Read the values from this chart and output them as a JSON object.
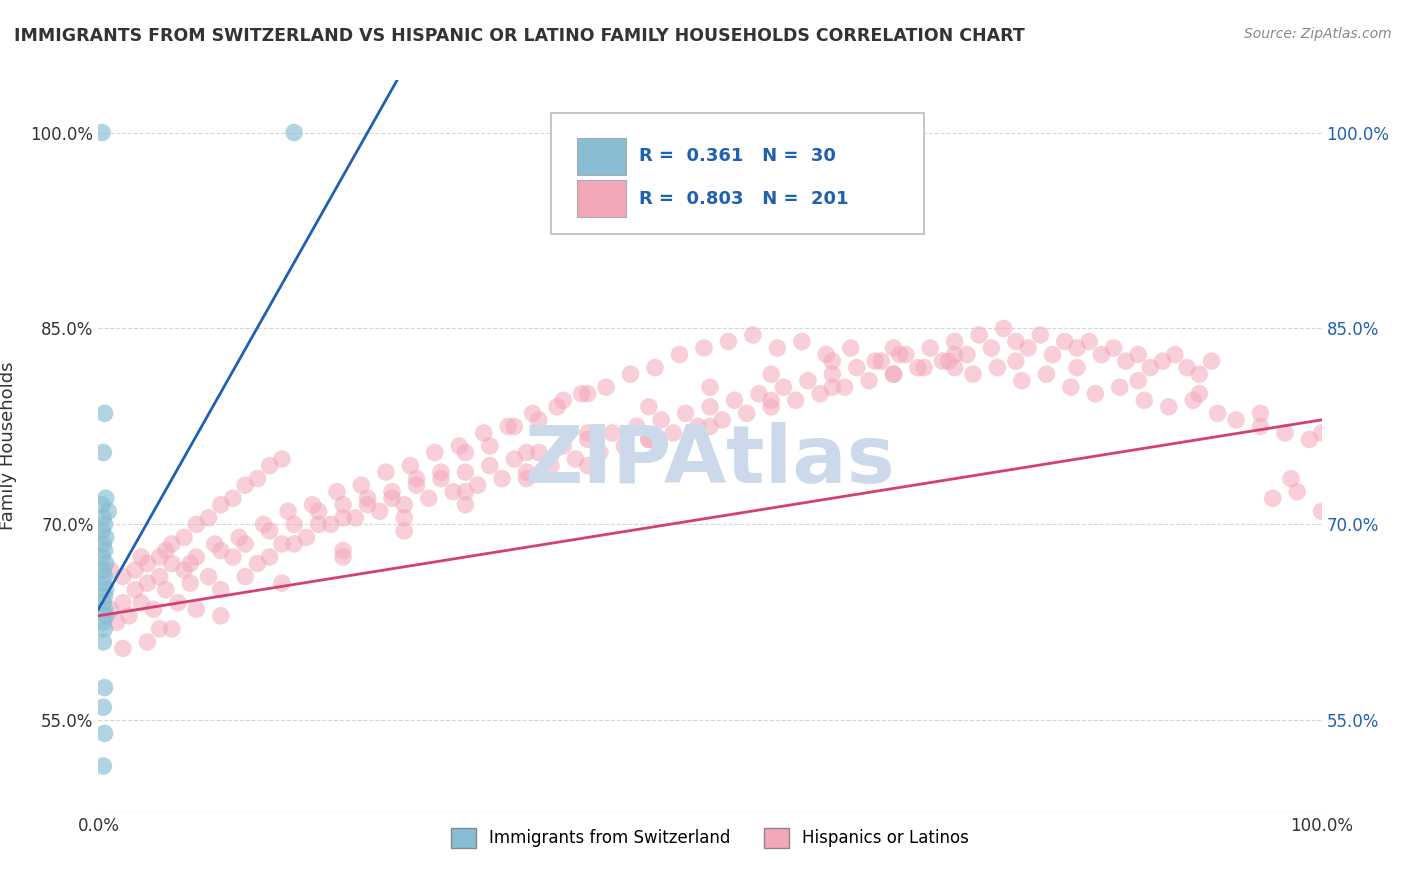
{
  "title": "IMMIGRANTS FROM SWITZERLAND VS HISPANIC OR LATINO FAMILY HOUSEHOLDS CORRELATION CHART",
  "source": "Source: ZipAtlas.com",
  "ylabel": "Family Households",
  "xlim": [
    0,
    100
  ],
  "ylim": [
    48,
    104
  ],
  "yticks": [
    55.0,
    70.0,
    85.0,
    100.0
  ],
  "ytick_labels": [
    "55.0%",
    "70.0%",
    "85.0%",
    "100.0%"
  ],
  "xticks": [
    0,
    100
  ],
  "xtick_labels": [
    "0.0%",
    "100.0%"
  ],
  "label1": "Immigrants from Switzerland",
  "label2": "Hispanics or Latinos",
  "blue_color": "#89bdd3",
  "pink_color": "#f4a7b9",
  "blue_line_color": "#2060b0",
  "pink_line_color": "#d44070",
  "blue_scatter": [
    [
      0.3,
      100.0
    ],
    [
      16.0,
      100.0
    ],
    [
      0.5,
      78.5
    ],
    [
      0.4,
      75.5
    ],
    [
      0.6,
      72.0
    ],
    [
      0.3,
      71.5
    ],
    [
      0.8,
      71.0
    ],
    [
      0.4,
      70.5
    ],
    [
      0.5,
      70.0
    ],
    [
      0.3,
      69.5
    ],
    [
      0.6,
      69.0
    ],
    [
      0.4,
      68.5
    ],
    [
      0.5,
      68.0
    ],
    [
      0.3,
      67.5
    ],
    [
      0.6,
      67.0
    ],
    [
      0.4,
      66.5
    ],
    [
      0.5,
      66.0
    ],
    [
      0.4,
      65.5
    ],
    [
      0.6,
      65.0
    ],
    [
      0.5,
      64.5
    ],
    [
      0.4,
      64.0
    ],
    [
      0.5,
      63.5
    ],
    [
      0.6,
      63.0
    ],
    [
      0.4,
      62.5
    ],
    [
      0.5,
      62.0
    ],
    [
      0.4,
      61.0
    ],
    [
      0.5,
      57.5
    ],
    [
      0.4,
      56.0
    ],
    [
      0.5,
      54.0
    ],
    [
      0.4,
      51.5
    ]
  ],
  "pink_scatter": [
    [
      1.0,
      63.5
    ],
    [
      1.5,
      62.5
    ],
    [
      2.0,
      64.0
    ],
    [
      2.5,
      63.0
    ],
    [
      3.0,
      65.0
    ],
    [
      3.5,
      64.0
    ],
    [
      4.0,
      65.5
    ],
    [
      4.5,
      63.5
    ],
    [
      5.0,
      66.0
    ],
    [
      5.5,
      65.0
    ],
    [
      6.0,
      67.0
    ],
    [
      6.5,
      64.0
    ],
    [
      7.0,
      66.5
    ],
    [
      7.5,
      65.5
    ],
    [
      8.0,
      67.5
    ],
    [
      9.0,
      66.0
    ],
    [
      10.0,
      68.0
    ],
    [
      11.0,
      67.5
    ],
    [
      12.0,
      68.5
    ],
    [
      13.0,
      67.0
    ],
    [
      14.0,
      69.5
    ],
    [
      15.0,
      68.5
    ],
    [
      16.0,
      70.0
    ],
    [
      17.0,
      69.0
    ],
    [
      18.0,
      71.0
    ],
    [
      19.0,
      70.0
    ],
    [
      20.0,
      71.5
    ],
    [
      21.0,
      70.5
    ],
    [
      22.0,
      72.0
    ],
    [
      23.0,
      71.0
    ],
    [
      24.0,
      72.5
    ],
    [
      25.0,
      71.5
    ],
    [
      26.0,
      73.0
    ],
    [
      27.0,
      72.0
    ],
    [
      28.0,
      73.5
    ],
    [
      29.0,
      72.5
    ],
    [
      30.0,
      74.0
    ],
    [
      31.0,
      73.0
    ],
    [
      32.0,
      74.5
    ],
    [
      33.0,
      73.5
    ],
    [
      34.0,
      75.0
    ],
    [
      35.0,
      74.0
    ],
    [
      36.0,
      75.5
    ],
    [
      37.0,
      74.5
    ],
    [
      38.0,
      76.0
    ],
    [
      39.0,
      75.0
    ],
    [
      40.0,
      76.5
    ],
    [
      41.0,
      75.5
    ],
    [
      42.0,
      77.0
    ],
    [
      43.0,
      76.0
    ],
    [
      44.0,
      77.5
    ],
    [
      45.0,
      76.5
    ],
    [
      46.0,
      78.0
    ],
    [
      47.0,
      77.0
    ],
    [
      48.0,
      78.5
    ],
    [
      49.0,
      77.5
    ],
    [
      50.0,
      79.0
    ],
    [
      51.0,
      78.0
    ],
    [
      52.0,
      79.5
    ],
    [
      53.0,
      78.5
    ],
    [
      54.0,
      80.0
    ],
    [
      55.0,
      79.0
    ],
    [
      56.0,
      80.5
    ],
    [
      57.0,
      79.5
    ],
    [
      58.0,
      81.0
    ],
    [
      59.0,
      80.0
    ],
    [
      60.0,
      81.5
    ],
    [
      61.0,
      80.5
    ],
    [
      62.0,
      82.0
    ],
    [
      63.0,
      81.0
    ],
    [
      64.0,
      82.5
    ],
    [
      65.0,
      81.5
    ],
    [
      66.0,
      83.0
    ],
    [
      67.0,
      82.0
    ],
    [
      68.0,
      83.5
    ],
    [
      69.0,
      82.5
    ],
    [
      70.0,
      84.0
    ],
    [
      71.0,
      83.0
    ],
    [
      72.0,
      84.5
    ],
    [
      73.0,
      83.5
    ],
    [
      74.0,
      85.0
    ],
    [
      75.0,
      84.0
    ],
    [
      76.0,
      83.5
    ],
    [
      77.0,
      84.5
    ],
    [
      78.0,
      83.0
    ],
    [
      79.0,
      84.0
    ],
    [
      80.0,
      83.5
    ],
    [
      81.0,
      84.0
    ],
    [
      82.0,
      83.0
    ],
    [
      83.0,
      83.5
    ],
    [
      84.0,
      82.5
    ],
    [
      85.0,
      83.0
    ],
    [
      86.0,
      82.0
    ],
    [
      87.0,
      82.5
    ],
    [
      88.0,
      83.0
    ],
    [
      89.0,
      82.0
    ],
    [
      90.0,
      81.5
    ],
    [
      91.0,
      82.5
    ],
    [
      3.5,
      67.5
    ],
    [
      5.5,
      68.0
    ],
    [
      7.5,
      67.0
    ],
    [
      9.5,
      68.5
    ],
    [
      11.5,
      69.0
    ],
    [
      13.5,
      70.0
    ],
    [
      15.5,
      71.0
    ],
    [
      17.5,
      71.5
    ],
    [
      19.5,
      72.5
    ],
    [
      21.5,
      73.0
    ],
    [
      23.5,
      74.0
    ],
    [
      25.5,
      74.5
    ],
    [
      27.5,
      75.5
    ],
    [
      29.5,
      76.0
    ],
    [
      31.5,
      77.0
    ],
    [
      33.5,
      77.5
    ],
    [
      35.5,
      78.5
    ],
    [
      37.5,
      79.0
    ],
    [
      39.5,
      80.0
    ],
    [
      41.5,
      80.5
    ],
    [
      43.5,
      81.5
    ],
    [
      45.5,
      82.0
    ],
    [
      47.5,
      83.0
    ],
    [
      49.5,
      83.5
    ],
    [
      51.5,
      84.0
    ],
    [
      53.5,
      84.5
    ],
    [
      55.5,
      83.5
    ],
    [
      57.5,
      84.0
    ],
    [
      59.5,
      83.0
    ],
    [
      61.5,
      83.5
    ],
    [
      63.5,
      82.5
    ],
    [
      65.5,
      83.0
    ],
    [
      67.5,
      82.0
    ],
    [
      69.5,
      82.5
    ],
    [
      71.5,
      81.5
    ],
    [
      73.5,
      82.0
    ],
    [
      75.5,
      81.0
    ],
    [
      77.5,
      81.5
    ],
    [
      79.5,
      80.5
    ],
    [
      81.5,
      80.0
    ],
    [
      83.5,
      80.5
    ],
    [
      85.5,
      79.5
    ],
    [
      87.5,
      79.0
    ],
    [
      89.5,
      79.5
    ],
    [
      91.5,
      78.5
    ],
    [
      93.0,
      78.0
    ],
    [
      95.0,
      77.5
    ],
    [
      97.0,
      77.0
    ],
    [
      99.0,
      76.5
    ],
    [
      5.0,
      62.0
    ],
    [
      10.0,
      63.0
    ],
    [
      15.0,
      65.5
    ],
    [
      20.0,
      67.5
    ],
    [
      25.0,
      69.5
    ],
    [
      30.0,
      71.5
    ],
    [
      35.0,
      73.5
    ],
    [
      40.0,
      74.5
    ],
    [
      45.0,
      76.5
    ],
    [
      50.0,
      77.5
    ],
    [
      55.0,
      79.5
    ],
    [
      60.0,
      80.5
    ],
    [
      65.0,
      81.5
    ],
    [
      70.0,
      82.0
    ],
    [
      75.0,
      82.5
    ],
    [
      80.0,
      82.0
    ],
    [
      85.0,
      81.0
    ],
    [
      90.0,
      80.0
    ],
    [
      95.0,
      78.5
    ],
    [
      100.0,
      77.0
    ],
    [
      2.0,
      60.5
    ],
    [
      4.0,
      61.0
    ],
    [
      6.0,
      62.0
    ],
    [
      8.0,
      63.5
    ],
    [
      10.0,
      65.0
    ],
    [
      12.0,
      66.0
    ],
    [
      14.0,
      67.5
    ],
    [
      16.0,
      68.5
    ],
    [
      18.0,
      70.0
    ],
    [
      20.0,
      70.5
    ],
    [
      22.0,
      71.5
    ],
    [
      24.0,
      72.0
    ],
    [
      26.0,
      73.5
    ],
    [
      28.0,
      74.0
    ],
    [
      30.0,
      75.5
    ],
    [
      32.0,
      76.0
    ],
    [
      34.0,
      77.5
    ],
    [
      36.0,
      78.0
    ],
    [
      38.0,
      79.5
    ],
    [
      40.0,
      80.0
    ],
    [
      1.0,
      66.5
    ],
    [
      2.0,
      66.0
    ],
    [
      3.0,
      66.5
    ],
    [
      4.0,
      67.0
    ],
    [
      5.0,
      67.5
    ],
    [
      6.0,
      68.5
    ],
    [
      7.0,
      69.0
    ],
    [
      8.0,
      70.0
    ],
    [
      9.0,
      70.5
    ],
    [
      10.0,
      71.5
    ],
    [
      11.0,
      72.0
    ],
    [
      12.0,
      73.0
    ],
    [
      13.0,
      73.5
    ],
    [
      14.0,
      74.5
    ],
    [
      15.0,
      75.0
    ],
    [
      20.0,
      68.0
    ],
    [
      25.0,
      70.5
    ],
    [
      30.0,
      72.5
    ],
    [
      35.0,
      75.5
    ],
    [
      40.0,
      77.0
    ],
    [
      45.0,
      79.0
    ],
    [
      50.0,
      80.5
    ],
    [
      55.0,
      81.5
    ],
    [
      60.0,
      82.5
    ],
    [
      65.0,
      83.5
    ],
    [
      70.0,
      83.0
    ],
    [
      96.0,
      72.0
    ],
    [
      97.5,
      73.5
    ],
    [
      98.0,
      72.5
    ],
    [
      100.0,
      71.0
    ]
  ],
  "blue_line": [
    [
      0,
      100
    ],
    [
      63.5,
      100.0
    ]
  ],
  "pink_line": [
    [
      0,
      100
    ],
    [
      63.0,
      78.0
    ]
  ],
  "background_color": "#ffffff",
  "grid_color": "#cccccc",
  "title_color": "#333333",
  "axis_color": "#333333",
  "watermark": "ZIPAtlas",
  "watermark_color": "#ccd9eb"
}
